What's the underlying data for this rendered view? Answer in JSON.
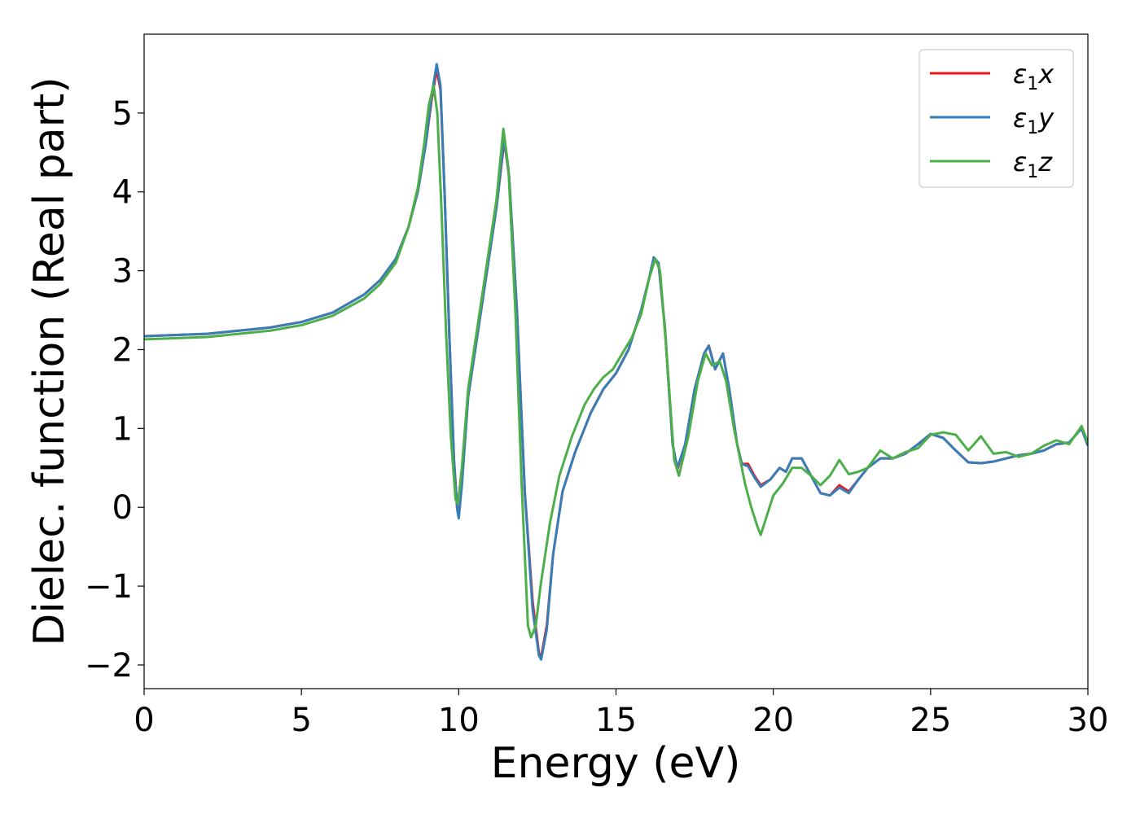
{
  "chart_data": {
    "type": "line",
    "xlabel": "Energy (eV)",
    "ylabel": "Dielec. function (Real part)",
    "xlim": [
      0,
      30
    ],
    "ylim": [
      -2.3,
      6.0
    ],
    "grid": false,
    "legend_position": "top-right",
    "x_ticks": [
      0,
      5,
      10,
      15,
      20,
      25,
      30
    ],
    "y_ticks": [
      -2,
      -1,
      0,
      1,
      2,
      3,
      4,
      5
    ],
    "x_tick_labels": [
      "0",
      "5",
      "10",
      "15",
      "20",
      "25",
      "30"
    ],
    "y_tick_labels": [
      "−2",
      "−1",
      "0",
      "1",
      "2",
      "3",
      "4",
      "5"
    ],
    "series": [
      {
        "name": "ε1x",
        "legend_base": "ε",
        "legend_sub": "1",
        "legend_var": "x",
        "color": "#e41a1c",
        "points": [
          [
            0,
            2.17
          ],
          [
            2,
            2.2
          ],
          [
            4,
            2.28
          ],
          [
            5,
            2.35
          ],
          [
            6,
            2.47
          ],
          [
            7,
            2.7
          ],
          [
            7.5,
            2.88
          ],
          [
            8,
            3.15
          ],
          [
            8.4,
            3.55
          ],
          [
            8.7,
            4.0
          ],
          [
            8.95,
            4.6
          ],
          [
            9.15,
            5.2
          ],
          [
            9.3,
            5.55
          ],
          [
            9.42,
            5.3
          ],
          [
            9.55,
            4.0
          ],
          [
            9.7,
            2.2
          ],
          [
            9.85,
            0.6
          ],
          [
            9.95,
            0.0
          ],
          [
            10.0,
            -0.12
          ],
          [
            10.1,
            0.3
          ],
          [
            10.3,
            1.4
          ],
          [
            10.6,
            2.2
          ],
          [
            10.9,
            3.0
          ],
          [
            11.2,
            3.8
          ],
          [
            11.45,
            4.65
          ],
          [
            11.6,
            4.2
          ],
          [
            11.85,
            2.5
          ],
          [
            12.1,
            0.2
          ],
          [
            12.35,
            -1.2
          ],
          [
            12.55,
            -1.85
          ],
          [
            12.62,
            -1.9
          ],
          [
            12.8,
            -1.5
          ],
          [
            13.0,
            -0.6
          ],
          [
            13.3,
            0.2
          ],
          [
            13.7,
            0.7
          ],
          [
            14.2,
            1.2
          ],
          [
            14.6,
            1.5
          ],
          [
            15.0,
            1.7
          ],
          [
            15.4,
            2.0
          ],
          [
            15.8,
            2.5
          ],
          [
            16.05,
            2.9
          ],
          [
            16.2,
            3.15
          ],
          [
            16.35,
            3.1
          ],
          [
            16.55,
            2.3
          ],
          [
            16.8,
            0.8
          ],
          [
            16.95,
            0.48
          ],
          [
            17.2,
            0.8
          ],
          [
            17.5,
            1.5
          ],
          [
            17.8,
            1.95
          ],
          [
            17.95,
            2.05
          ],
          [
            18.15,
            1.75
          ],
          [
            18.4,
            1.95
          ],
          [
            18.6,
            1.5
          ],
          [
            18.85,
            0.8
          ],
          [
            19.0,
            0.55
          ],
          [
            19.2,
            0.55
          ],
          [
            19.4,
            0.4
          ],
          [
            19.6,
            0.28
          ],
          [
            19.9,
            0.35
          ],
          [
            20.2,
            0.5
          ],
          [
            20.4,
            0.45
          ],
          [
            20.6,
            0.62
          ],
          [
            20.9,
            0.62
          ],
          [
            21.2,
            0.4
          ],
          [
            21.5,
            0.18
          ],
          [
            21.8,
            0.15
          ],
          [
            22.1,
            0.28
          ],
          [
            22.4,
            0.2
          ],
          [
            22.7,
            0.35
          ],
          [
            23.0,
            0.5
          ],
          [
            23.4,
            0.62
          ],
          [
            23.8,
            0.62
          ],
          [
            24.2,
            0.68
          ],
          [
            24.6,
            0.8
          ],
          [
            25.0,
            0.93
          ],
          [
            25.4,
            0.88
          ],
          [
            25.8,
            0.72
          ],
          [
            26.2,
            0.57
          ],
          [
            26.6,
            0.56
          ],
          [
            27.0,
            0.58
          ],
          [
            27.4,
            0.62
          ],
          [
            27.8,
            0.66
          ],
          [
            28.2,
            0.68
          ],
          [
            28.6,
            0.72
          ],
          [
            29.0,
            0.8
          ],
          [
            29.4,
            0.82
          ],
          [
            29.8,
            1.0
          ],
          [
            30.0,
            0.78
          ]
        ]
      },
      {
        "name": "ε1y",
        "legend_base": "ε",
        "legend_sub": "1",
        "legend_var": "y",
        "color": "#377eb8",
        "points": [
          [
            0,
            2.17
          ],
          [
            2,
            2.2
          ],
          [
            4,
            2.28
          ],
          [
            5,
            2.35
          ],
          [
            6,
            2.47
          ],
          [
            7,
            2.7
          ],
          [
            7.5,
            2.88
          ],
          [
            8,
            3.15
          ],
          [
            8.4,
            3.55
          ],
          [
            8.7,
            4.0
          ],
          [
            8.95,
            4.6
          ],
          [
            9.15,
            5.25
          ],
          [
            9.3,
            5.62
          ],
          [
            9.42,
            5.35
          ],
          [
            9.55,
            4.0
          ],
          [
            9.7,
            2.2
          ],
          [
            9.85,
            0.6
          ],
          [
            9.95,
            -0.02
          ],
          [
            10.0,
            -0.14
          ],
          [
            10.1,
            0.28
          ],
          [
            10.3,
            1.4
          ],
          [
            10.6,
            2.2
          ],
          [
            10.9,
            3.0
          ],
          [
            11.2,
            3.8
          ],
          [
            11.45,
            4.68
          ],
          [
            11.6,
            4.2
          ],
          [
            11.85,
            2.5
          ],
          [
            12.1,
            0.2
          ],
          [
            12.35,
            -1.3
          ],
          [
            12.55,
            -1.88
          ],
          [
            12.62,
            -1.93
          ],
          [
            12.8,
            -1.55
          ],
          [
            13.0,
            -0.6
          ],
          [
            13.3,
            0.2
          ],
          [
            13.7,
            0.7
          ],
          [
            14.2,
            1.2
          ],
          [
            14.6,
            1.5
          ],
          [
            15.0,
            1.7
          ],
          [
            15.4,
            2.0
          ],
          [
            15.8,
            2.5
          ],
          [
            16.05,
            2.9
          ],
          [
            16.2,
            3.17
          ],
          [
            16.35,
            3.1
          ],
          [
            16.55,
            2.3
          ],
          [
            16.8,
            0.8
          ],
          [
            16.95,
            0.5
          ],
          [
            17.2,
            0.8
          ],
          [
            17.5,
            1.5
          ],
          [
            17.8,
            1.95
          ],
          [
            17.95,
            2.05
          ],
          [
            18.15,
            1.75
          ],
          [
            18.4,
            1.95
          ],
          [
            18.6,
            1.5
          ],
          [
            18.85,
            0.8
          ],
          [
            19.0,
            0.55
          ],
          [
            19.2,
            0.52
          ],
          [
            19.4,
            0.38
          ],
          [
            19.6,
            0.26
          ],
          [
            19.9,
            0.35
          ],
          [
            20.2,
            0.5
          ],
          [
            20.4,
            0.45
          ],
          [
            20.6,
            0.62
          ],
          [
            20.9,
            0.62
          ],
          [
            21.2,
            0.4
          ],
          [
            21.5,
            0.18
          ],
          [
            21.8,
            0.15
          ],
          [
            22.1,
            0.25
          ],
          [
            22.4,
            0.18
          ],
          [
            22.7,
            0.35
          ],
          [
            23.0,
            0.5
          ],
          [
            23.4,
            0.62
          ],
          [
            23.8,
            0.62
          ],
          [
            24.2,
            0.68
          ],
          [
            24.6,
            0.8
          ],
          [
            25.0,
            0.93
          ],
          [
            25.4,
            0.88
          ],
          [
            25.8,
            0.72
          ],
          [
            26.2,
            0.57
          ],
          [
            26.6,
            0.56
          ],
          [
            27.0,
            0.58
          ],
          [
            27.4,
            0.62
          ],
          [
            27.8,
            0.66
          ],
          [
            28.2,
            0.68
          ],
          [
            28.6,
            0.72
          ],
          [
            29.0,
            0.8
          ],
          [
            29.4,
            0.82
          ],
          [
            29.8,
            1.0
          ],
          [
            30.0,
            0.78
          ]
        ]
      },
      {
        "name": "ε1z",
        "legend_base": "ε",
        "legend_sub": "1",
        "legend_var": "z",
        "color": "#4daf4a",
        "points": [
          [
            0,
            2.13
          ],
          [
            2,
            2.16
          ],
          [
            4,
            2.24
          ],
          [
            5,
            2.31
          ],
          [
            6,
            2.43
          ],
          [
            7,
            2.65
          ],
          [
            7.5,
            2.83
          ],
          [
            8,
            3.1
          ],
          [
            8.4,
            3.55
          ],
          [
            8.7,
            4.05
          ],
          [
            8.9,
            4.6
          ],
          [
            9.05,
            5.1
          ],
          [
            9.2,
            5.35
          ],
          [
            9.32,
            5.0
          ],
          [
            9.45,
            3.8
          ],
          [
            9.6,
            2.2
          ],
          [
            9.75,
            0.9
          ],
          [
            9.9,
            0.1
          ],
          [
            9.98,
            0.05
          ],
          [
            10.1,
            0.5
          ],
          [
            10.3,
            1.5
          ],
          [
            10.6,
            2.3
          ],
          [
            10.9,
            3.1
          ],
          [
            11.2,
            3.9
          ],
          [
            11.42,
            4.8
          ],
          [
            11.58,
            4.3
          ],
          [
            11.8,
            2.5
          ],
          [
            12.0,
            0.3
          ],
          [
            12.2,
            -1.5
          ],
          [
            12.3,
            -1.65
          ],
          [
            12.45,
            -1.5
          ],
          [
            12.6,
            -1.0
          ],
          [
            12.9,
            -0.2
          ],
          [
            13.2,
            0.4
          ],
          [
            13.6,
            0.9
          ],
          [
            14.0,
            1.3
          ],
          [
            14.3,
            1.5
          ],
          [
            14.6,
            1.65
          ],
          [
            14.9,
            1.75
          ],
          [
            15.2,
            1.95
          ],
          [
            15.5,
            2.15
          ],
          [
            15.8,
            2.45
          ],
          [
            16.05,
            2.9
          ],
          [
            16.25,
            3.15
          ],
          [
            16.4,
            3.0
          ],
          [
            16.6,
            2.0
          ],
          [
            16.85,
            0.6
          ],
          [
            17.0,
            0.4
          ],
          [
            17.3,
            0.9
          ],
          [
            17.6,
            1.6
          ],
          [
            17.85,
            1.95
          ],
          [
            18.05,
            1.8
          ],
          [
            18.3,
            1.85
          ],
          [
            18.5,
            1.6
          ],
          [
            18.75,
            1.0
          ],
          [
            18.95,
            0.6
          ],
          [
            19.1,
            0.3
          ],
          [
            19.3,
            0.0
          ],
          [
            19.5,
            -0.25
          ],
          [
            19.6,
            -0.35
          ],
          [
            19.8,
            -0.1
          ],
          [
            20.0,
            0.15
          ],
          [
            20.3,
            0.3
          ],
          [
            20.6,
            0.5
          ],
          [
            20.9,
            0.5
          ],
          [
            21.2,
            0.4
          ],
          [
            21.5,
            0.28
          ],
          [
            21.8,
            0.4
          ],
          [
            22.1,
            0.6
          ],
          [
            22.4,
            0.42
          ],
          [
            22.7,
            0.45
          ],
          [
            23.0,
            0.5
          ],
          [
            23.4,
            0.72
          ],
          [
            23.8,
            0.62
          ],
          [
            24.2,
            0.7
          ],
          [
            24.6,
            0.75
          ],
          [
            25.0,
            0.92
          ],
          [
            25.4,
            0.95
          ],
          [
            25.8,
            0.92
          ],
          [
            26.2,
            0.72
          ],
          [
            26.6,
            0.9
          ],
          [
            27.0,
            0.68
          ],
          [
            27.4,
            0.7
          ],
          [
            27.8,
            0.64
          ],
          [
            28.2,
            0.68
          ],
          [
            28.6,
            0.78
          ],
          [
            29.0,
            0.85
          ],
          [
            29.4,
            0.8
          ],
          [
            29.8,
            1.03
          ],
          [
            30.0,
            0.82
          ]
        ]
      }
    ]
  }
}
